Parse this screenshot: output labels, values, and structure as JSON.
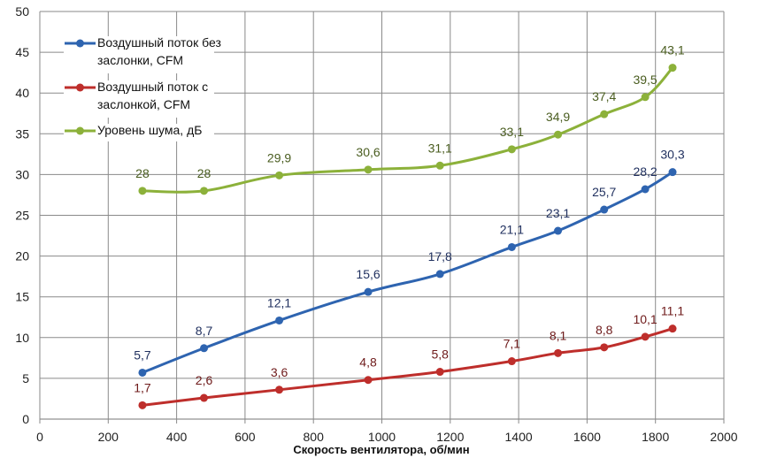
{
  "chart_data": {
    "type": "line",
    "title": "",
    "xlabel": "Скорость вентилятора, об/мин",
    "ylabel": "",
    "xlim": [
      0,
      2000
    ],
    "ylim": [
      0,
      50
    ],
    "xticks": [
      0,
      200,
      400,
      600,
      800,
      1000,
      1200,
      1400,
      1600,
      1800,
      2000
    ],
    "yticks": [
      0,
      5,
      10,
      15,
      20,
      25,
      30,
      35,
      40,
      45,
      50
    ],
    "grid": true,
    "smooth": true,
    "legend": "top-left",
    "x": [
      300,
      480,
      700,
      960,
      1170,
      1380,
      1515,
      1650,
      1770,
      1850
    ],
    "series": [
      {
        "name": "Воздушный поток без заслонки, CFM",
        "color": "#2e64b0",
        "label_color": "#1f2f5e",
        "values": [
          5.7,
          8.7,
          12.1,
          15.6,
          17.8,
          21.1,
          23.1,
          25.7,
          28.2,
          30.3
        ],
        "labels": [
          "5,7",
          "8,7",
          "12,1",
          "15,6",
          "17,8",
          "21,1",
          "23,1",
          "25,7",
          "28,2",
          "30,3"
        ]
      },
      {
        "name": "Воздушный поток с заслонкой, CFM",
        "color": "#be2e2b",
        "label_color": "#6e1a1a",
        "values": [
          1.7,
          2.6,
          3.6,
          4.8,
          5.8,
          7.1,
          8.1,
          8.8,
          10.1,
          11.1
        ],
        "labels": [
          "1,7",
          "2,6",
          "3,6",
          "4,8",
          "5,8",
          "7,1",
          "8,1",
          "8,8",
          "10,1",
          "11,1"
        ]
      },
      {
        "name": "Уровень шума, дБ",
        "color": "#8cb13a",
        "label_color": "#4a5d20",
        "values": [
          28,
          28,
          29.9,
          30.6,
          31.1,
          33.1,
          34.9,
          37.4,
          39.5,
          43.1
        ],
        "labels": [
          "28",
          "28",
          "29,9",
          "30,6",
          "31,1",
          "33,1",
          "34,9",
          "37,4",
          "39,5",
          "43,1"
        ]
      }
    ]
  }
}
